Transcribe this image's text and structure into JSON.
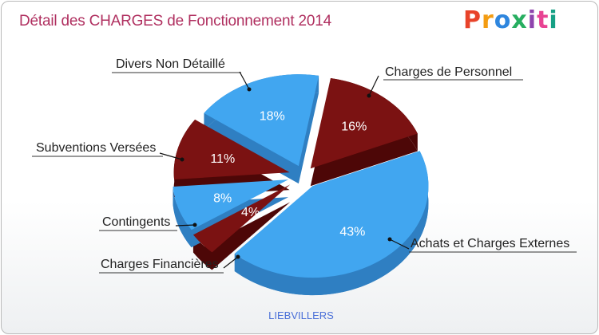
{
  "title": "Détail des CHARGES de Fonctionnement 2014",
  "logo": {
    "text": "Proxiti",
    "colors": [
      "#e8432a",
      "#f39c12",
      "#2e86de",
      "#27ae60",
      "#8e44ad",
      "#e84393",
      "#16a085"
    ]
  },
  "footer": "LIEBVILLERS",
  "colors": {
    "blue": "#41a6f0",
    "blue_dark": "#2f7fc2",
    "red": "#7b1212",
    "red_dark": "#4d0707",
    "title": "#b03060"
  },
  "chart_data": {
    "type": "pie",
    "title": "Détail des CHARGES de Fonctionnement 2014",
    "caption": "LIEBVILLERS",
    "slices": [
      {
        "label": "Charges de Personnel",
        "value": 16,
        "pct_label": "16%",
        "color": "red"
      },
      {
        "label": "Achats et Charges Externes",
        "value": 43,
        "pct_label": "43%",
        "color": "blue"
      },
      {
        "label": "Charges Financières",
        "value": 4,
        "pct_label": "4%",
        "color": "red"
      },
      {
        "label": "Contingents",
        "value": 8,
        "pct_label": "8%",
        "color": "blue"
      },
      {
        "label": "Subventions Versées",
        "value": 11,
        "pct_label": "11%",
        "color": "red"
      },
      {
        "label": "Divers Non Détaillé",
        "value": 18,
        "pct_label": "18%",
        "color": "blue"
      }
    ]
  }
}
